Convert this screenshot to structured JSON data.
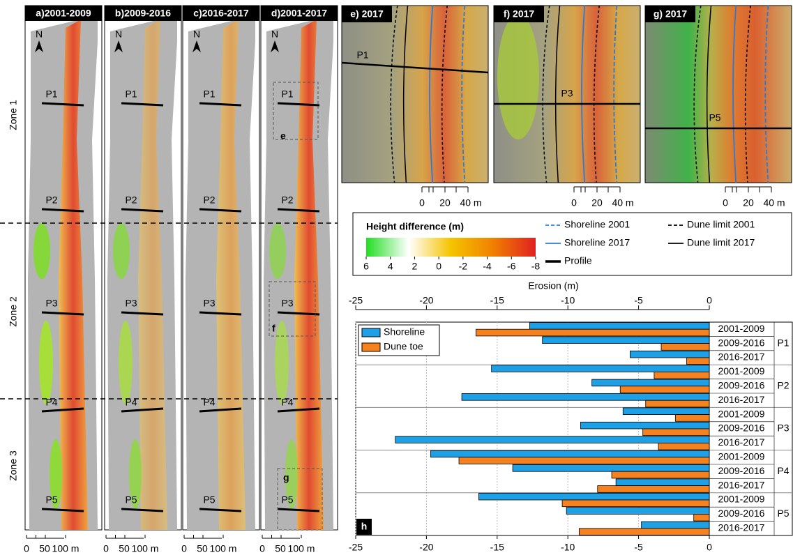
{
  "maps": {
    "panels": [
      "a)2001-2009",
      "b)2009-2016",
      "c)2016-2017",
      "d)2001-2017"
    ],
    "zones": [
      "Zone 1",
      "Zone 2",
      "Zone 3"
    ],
    "profiles": [
      "P1",
      "P2",
      "P3",
      "P4",
      "P5"
    ],
    "insets": [
      "e",
      "f",
      "g"
    ],
    "north": "N",
    "scale": [
      "0",
      "50",
      "100 m"
    ]
  },
  "photos": {
    "panels": [
      "e) 2017",
      "f) 2017",
      "g) 2017"
    ],
    "scale": [
      "0",
      "20",
      "40 m"
    ]
  },
  "legend": {
    "title": "Height difference (m)",
    "colorbar": {
      "lim": [
        6,
        -8
      ],
      "ticks": [
        6,
        4,
        2,
        0,
        -2,
        -4,
        -6,
        -8
      ],
      "colors": [
        "#22dd22",
        "#ffffff",
        "#f5c400",
        "#f08000",
        "#e02020"
      ]
    },
    "lines": [
      {
        "name": "Shoreline 2001",
        "color": "#2b7bd6",
        "dash": true
      },
      {
        "name": "Dune limit 2001",
        "color": "#000000",
        "dash": true
      },
      {
        "name": "Shoreline 2017",
        "color": "#2b7bd6",
        "dash": false
      },
      {
        "name": "Dune limit 2017",
        "color": "#000000",
        "dash": false
      }
    ],
    "profile": "Profile"
  },
  "chart_data": {
    "type": "bar",
    "orientation": "horizontal",
    "panel_label": "h",
    "xlabel": "Erosion (m)",
    "groups": [
      "P1",
      "P2",
      "P3",
      "P4",
      "P5"
    ],
    "categories": [
      "2001-2009",
      "2009-2016",
      "2016-2017",
      "2001-2009",
      "2009-2016",
      "2016-2017",
      "2001-2009",
      "2009-2016",
      "2016-2017",
      "2001-2009",
      "2009-2016",
      "2016-2017",
      "2001-2009",
      "2009-2016",
      "2016-2017"
    ],
    "series": [
      {
        "name": "Shoreline",
        "color": "#1ea0e6",
        "values": [
          -12.7,
          -11.8,
          -5.6,
          -15.4,
          -8.3,
          -17.5,
          -6.1,
          -9.1,
          -22.2,
          -19.7,
          -13.9,
          -6.6,
          -16.3,
          -10.1,
          -4.8
        ]
      },
      {
        "name": "Dune toe",
        "color": "#f5821f",
        "values": [
          -16.5,
          -3.4,
          -1.6,
          -3.9,
          -6.3,
          -4.5,
          -2.4,
          -4.7,
          -3.6,
          -17.7,
          -6.9,
          -7.9,
          -10.4,
          -1.1,
          -9.2
        ]
      }
    ],
    "xlim": [
      -25,
      0
    ],
    "xticks": [
      -25,
      -20,
      -15,
      -10,
      -5,
      0
    ],
    "grid": true,
    "legend": "upper left"
  }
}
